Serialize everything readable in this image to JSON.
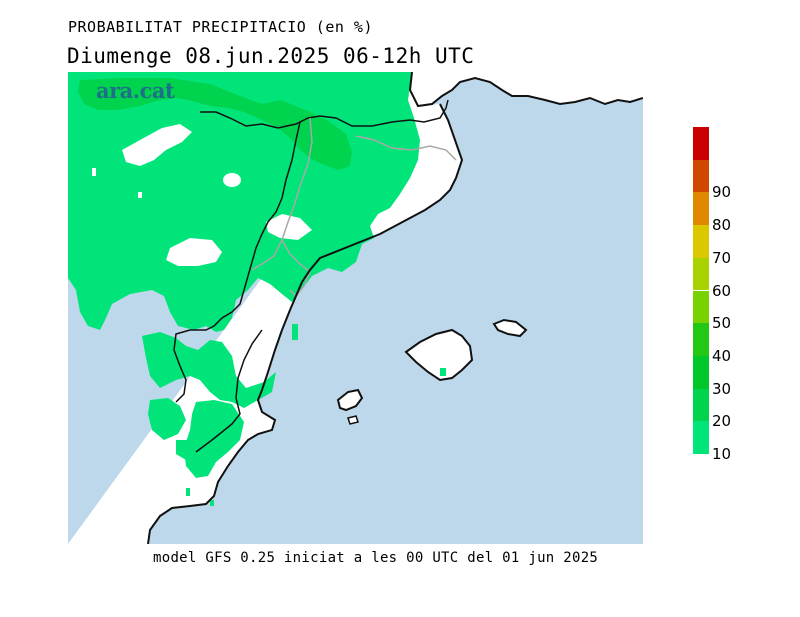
{
  "title": "PROBABILITAT PRECIPITACIO (en %)",
  "subtitle": "Diumenge  08.jun.2025 06-12h UTC",
  "footer": "model GFS 0.25 iniciat a les 00 UTC del 01 jun 2025",
  "logo_text": "ara.cat",
  "map": {
    "sea_color": "#bcd8ea",
    "land_color": "#ffffff",
    "coast_color": "#111111",
    "border_color": "#a8a8a8"
  },
  "legend": {
    "bands": [
      {
        "min": 10,
        "max": 20,
        "color": "#00e47a"
      },
      {
        "min": 20,
        "max": 30,
        "color": "#00d44e"
      },
      {
        "min": 30,
        "max": 40,
        "color": "#00c828"
      },
      {
        "min": 40,
        "max": 50,
        "color": "#22c814"
      },
      {
        "min": 50,
        "max": 60,
        "color": "#78d200"
      },
      {
        "min": 60,
        "max": 70,
        "color": "#a8d200"
      },
      {
        "min": 70,
        "max": 80,
        "color": "#dcc800"
      },
      {
        "min": 80,
        "max": 90,
        "color": "#e08800"
      },
      {
        "min": 90,
        "max": 100,
        "color": "#d04800"
      },
      {
        "min": 100,
        "max": 110,
        "color": "#c80000"
      }
    ],
    "labels": [
      "10",
      "20",
      "30",
      "40",
      "50",
      "60",
      "70",
      "80",
      "90"
    ]
  }
}
